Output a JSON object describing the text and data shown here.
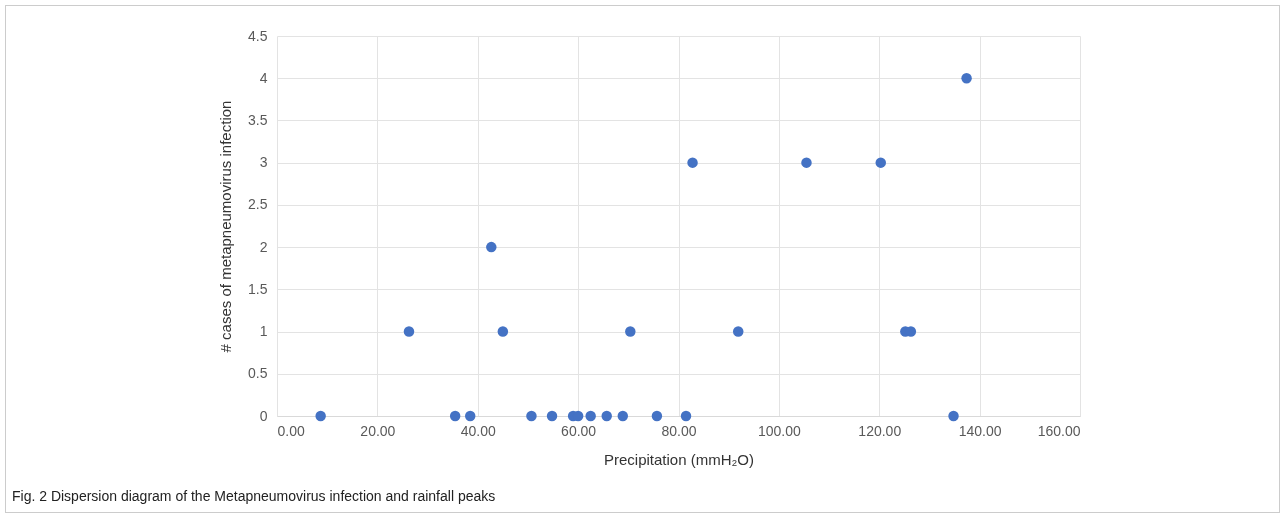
{
  "chart_data": {
    "type": "scatter",
    "x": [
      8.7,
      26.3,
      35.5,
      38.5,
      42.7,
      45.0,
      50.7,
      54.8,
      59.0,
      60.0,
      62.5,
      65.7,
      68.9,
      70.4,
      75.7,
      81.5,
      82.8,
      91.9,
      105.5,
      120.3,
      125.2,
      126.3,
      134.8,
      137.4
    ],
    "series": [
      {
        "color": "#4472c4",
        "values": [
          0,
          1,
          0,
          0,
          2,
          1,
          0,
          0,
          0,
          0,
          0,
          0,
          0,
          1,
          0,
          0,
          3,
          1,
          3,
          3,
          1,
          1,
          0,
          4
        ]
      }
    ],
    "xlabel": "Precipitation (mmH₂O)",
    "ylabel": "# cases of metapneumovirus infection",
    "xlim": [
      0,
      160
    ],
    "xticks": [
      {
        "value": 0,
        "label": "0.00"
      },
      {
        "value": 20,
        "label": "20.00"
      },
      {
        "value": 40,
        "label": "40.00"
      },
      {
        "value": 60,
        "label": "60.00"
      },
      {
        "value": 80,
        "label": "80.00"
      },
      {
        "value": 100,
        "label": "100.00"
      },
      {
        "value": 120,
        "label": "120.00"
      },
      {
        "value": 140,
        "label": "140.00"
      },
      {
        "value": 160,
        "label": "160.00"
      }
    ],
    "ylim": [
      0,
      4.5
    ],
    "yticks": [
      0,
      0.5,
      1,
      1.5,
      2,
      2.5,
      3,
      3.5,
      4,
      4.5
    ],
    "grid": true,
    "marker": "circle",
    "annotations": [
      "Fig. 2 Dispersion diagram of the Metapneumovirus infection and rainfall peaks"
    ]
  }
}
